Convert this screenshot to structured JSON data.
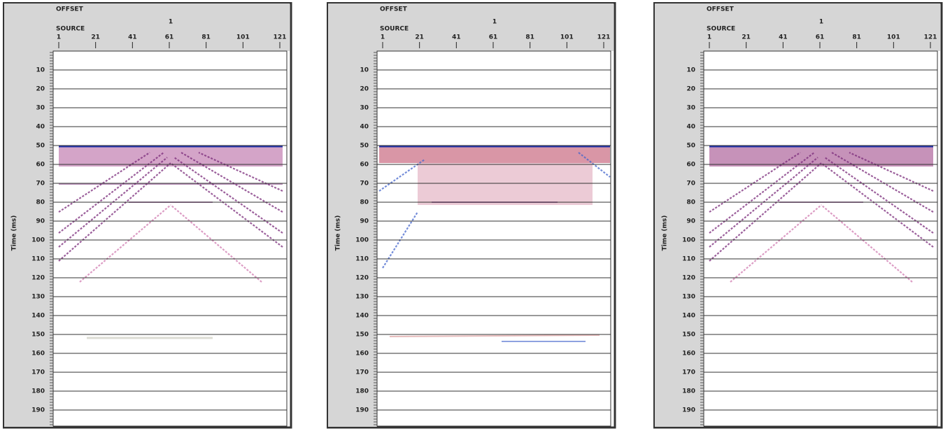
{
  "panels": [
    {
      "offset_label": "OFFSET",
      "offset_value": "1",
      "source_label": "SOURCE",
      "x_ticks": [
        1,
        21,
        41,
        61,
        81,
        101,
        121
      ],
      "y_label": "Time (ms)",
      "y_ticks": [
        10,
        20,
        30,
        40,
        50,
        60,
        70,
        80,
        90,
        100,
        110,
        120,
        130,
        140,
        150,
        160,
        170,
        180,
        190
      ]
    },
    {
      "offset_label": "OFFSET",
      "offset_value": "1",
      "source_label": "SOURCE",
      "x_ticks": [
        1,
        21,
        41,
        61,
        81,
        101,
        121
      ],
      "y_label": "Time (ms)",
      "y_ticks": [
        10,
        20,
        30,
        40,
        50,
        60,
        70,
        80,
        90,
        100,
        110,
        120,
        130,
        140,
        150,
        160,
        170,
        180,
        190
      ]
    },
    {
      "offset_label": "OFFSET",
      "offset_value": "1",
      "source_label": "SOURCE",
      "x_ticks": [
        1,
        21,
        41,
        61,
        81,
        101,
        121
      ],
      "y_label": "Time (ms)",
      "y_ticks": [
        10,
        20,
        30,
        40,
        50,
        60,
        70,
        80,
        90,
        100,
        110,
        120,
        130,
        140,
        150,
        160,
        170,
        180,
        190
      ]
    }
  ]
}
